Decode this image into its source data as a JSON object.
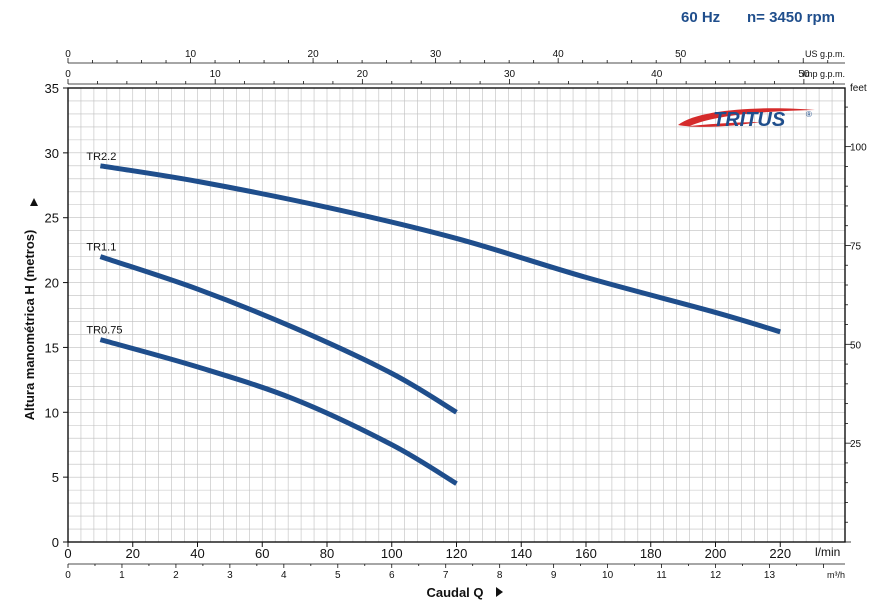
{
  "header": {
    "frequency": "60 Hz",
    "speed": "n= 3450 rpm"
  },
  "brand": {
    "name": "TRITUS",
    "mark": "®",
    "color": "#1f4e8c",
    "swoosh_color": "#d52b2b"
  },
  "colors": {
    "curve": "#1f4e8c",
    "grid": "#bfbfbf",
    "axis": "#111111"
  },
  "chart_data": {
    "type": "line",
    "title": "",
    "xlabel": "Caudal Q",
    "ylabel": "Altura manométrica H (metros)",
    "xunit": "l/min",
    "xlim": [
      0,
      240
    ],
    "ylim": [
      0,
      35
    ],
    "grid": true,
    "x_ticks": [
      0,
      20,
      40,
      60,
      80,
      100,
      120,
      140,
      160,
      180,
      200,
      220
    ],
    "y_ticks": [
      0,
      5,
      10,
      15,
      20,
      25,
      30,
      35
    ],
    "secondary_axes": {
      "top_us": {
        "unit": "US g.p.m.",
        "ticks": [
          0,
          10,
          20,
          30,
          40,
          50
        ]
      },
      "top_imp": {
        "unit": "Imp g.p.m.",
        "ticks": [
          0,
          10,
          20,
          30,
          40,
          50
        ]
      },
      "bottom_m3h": {
        "unit": "m³/h",
        "ticks": [
          0,
          1,
          2,
          3,
          4,
          5,
          6,
          7,
          8,
          9,
          10,
          11,
          12,
          13
        ]
      },
      "right_feet": {
        "unit": "feet",
        "ticks": [
          25,
          50,
          75,
          100
        ]
      }
    },
    "series": [
      {
        "name": "TR2.2",
        "x": [
          10,
          40,
          80,
          120,
          160,
          200,
          220
        ],
        "y": [
          29.0,
          27.8,
          25.8,
          23.4,
          20.4,
          17.7,
          16.2
        ]
      },
      {
        "name": "TR1.1",
        "x": [
          10,
          40,
          70,
          100,
          120
        ],
        "y": [
          22.0,
          19.5,
          16.5,
          13.0,
          10.0
        ]
      },
      {
        "name": "TR0.75",
        "x": [
          10,
          40,
          70,
          100,
          120
        ],
        "y": [
          15.6,
          13.5,
          11.0,
          7.5,
          4.5
        ]
      }
    ]
  }
}
